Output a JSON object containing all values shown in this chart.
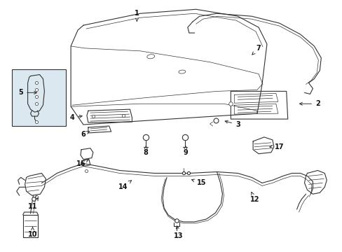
{
  "background_color": "#ffffff",
  "figsize": [
    4.89,
    3.6
  ],
  "dpi": 100,
  "line_color": "#333333",
  "lw": 0.8,
  "tlw": 0.5,
  "fs": 7.0,
  "label_color": "#111111",
  "labels": [
    [
      "1",
      195,
      18,
      195,
      30
    ],
    [
      "2",
      455,
      148,
      425,
      148
    ],
    [
      "3",
      340,
      178,
      318,
      172
    ],
    [
      "4",
      102,
      168,
      120,
      165
    ],
    [
      "5",
      28,
      132,
      55,
      132
    ],
    [
      "6",
      118,
      192,
      130,
      186
    ],
    [
      "7",
      370,
      68,
      358,
      80
    ],
    [
      "8",
      208,
      218,
      208,
      208
    ],
    [
      "9",
      265,
      218,
      265,
      208
    ],
    [
      "10",
      45,
      336,
      45,
      322
    ],
    [
      "11",
      45,
      296,
      55,
      280
    ],
    [
      "12",
      365,
      286,
      358,
      272
    ],
    [
      "13",
      255,
      338,
      252,
      320
    ],
    [
      "14",
      175,
      268,
      190,
      256
    ],
    [
      "15",
      288,
      262,
      270,
      256
    ],
    [
      "16",
      115,
      234,
      126,
      228
    ],
    [
      "17",
      400,
      210,
      382,
      210
    ]
  ]
}
